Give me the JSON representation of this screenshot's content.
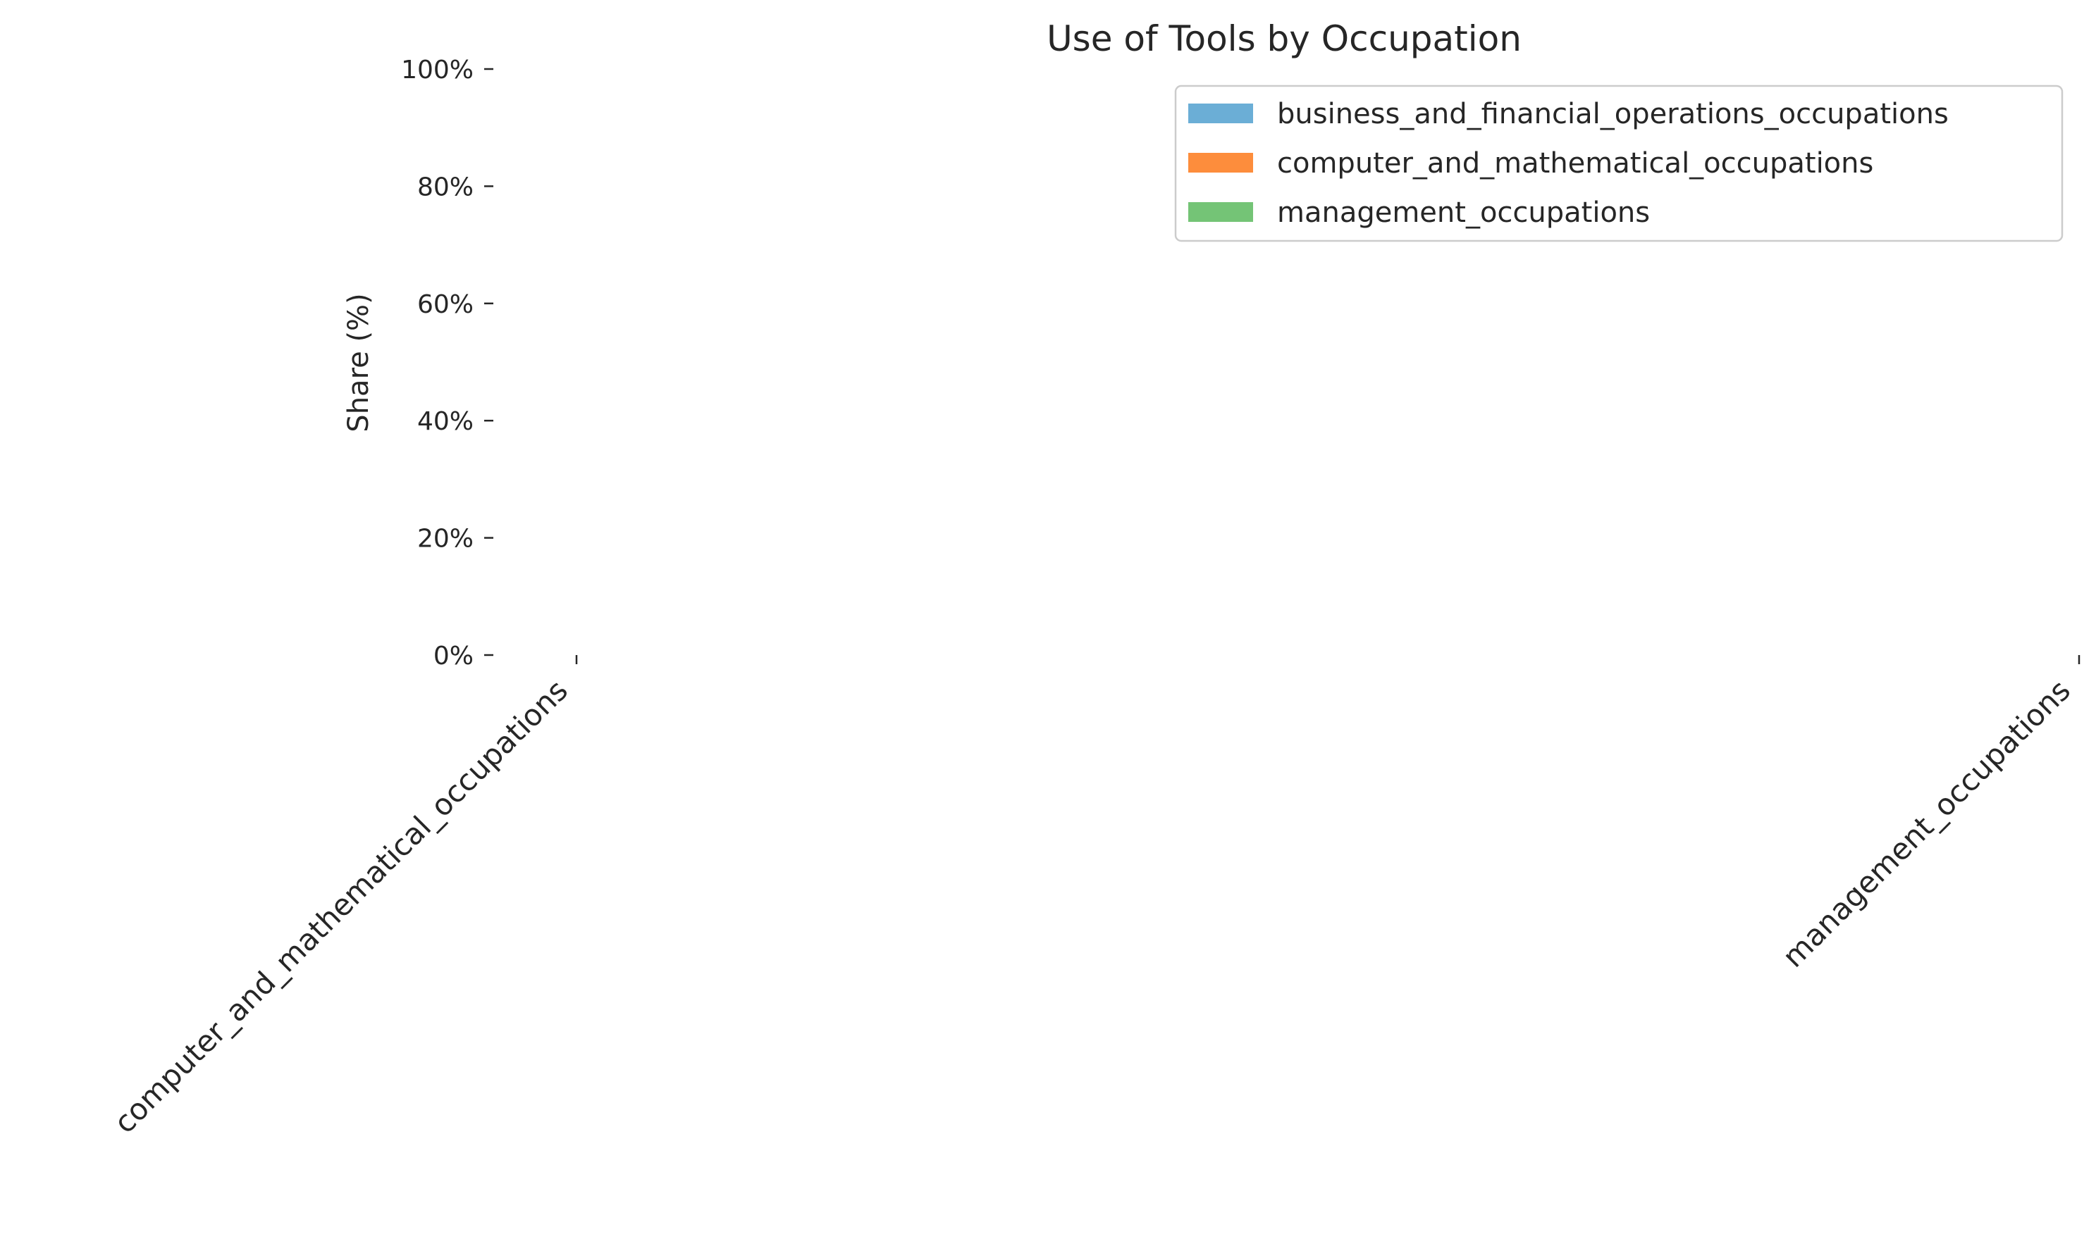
{
  "chart_data": {
    "type": "bar",
    "stacked": true,
    "title": "Use of Tools by Occupation",
    "xlabel": "",
    "ylabel": "Share (%)",
    "ylim": [
      0,
      100
    ],
    "yticks": [
      "0%",
      "20%",
      "40%",
      "60%",
      "80%",
      "100%"
    ],
    "categories": [
      "computer_and_mathematical_occupations",
      "management_occupations"
    ],
    "series": [
      {
        "name": "business_and_financial_operations_occupations",
        "color": "#6baed6",
        "values": [
          0,
          0
        ]
      },
      {
        "name": "computer_and_mathematical_occupations",
        "color": "#fd8d3c",
        "values": [
          0,
          0
        ]
      },
      {
        "name": "management_occupations",
        "color": "#74c476",
        "values": [
          0,
          0
        ]
      }
    ],
    "grid": false,
    "legend_position": "top-right"
  }
}
